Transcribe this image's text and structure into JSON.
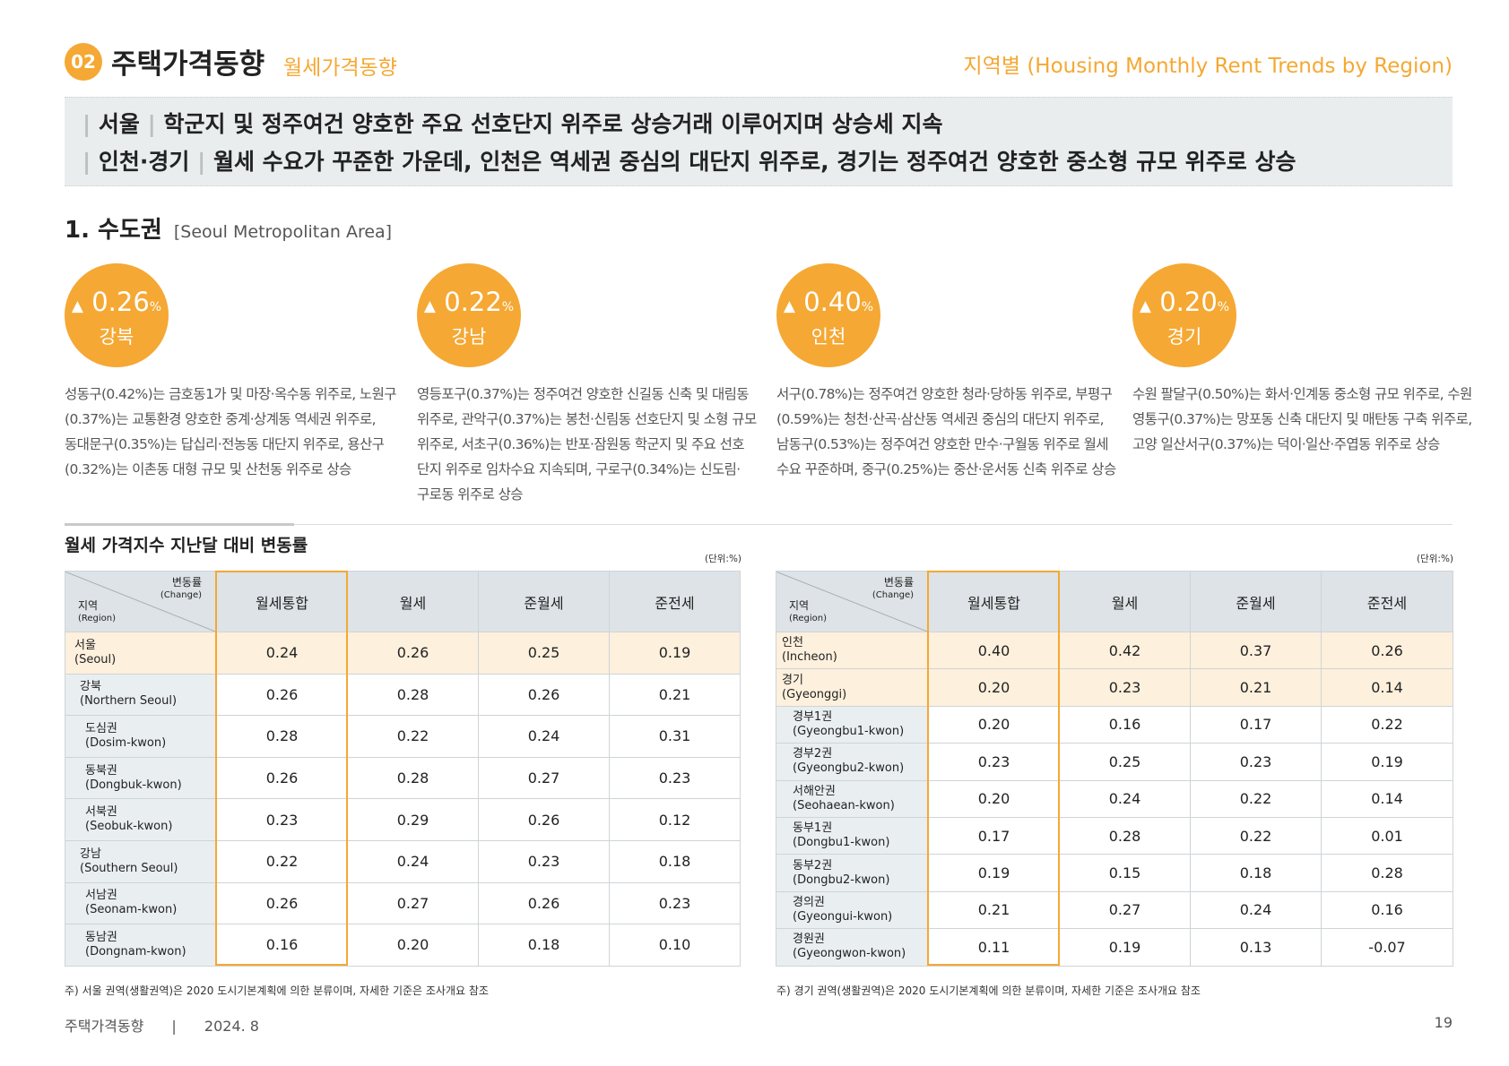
{
  "header": {
    "section_number": "02",
    "title": "주택가격동향",
    "subtitle": "월세가격동향",
    "right_title": "지역별 (Housing Monthly Rent Trends by Region)"
  },
  "summary": {
    "line1_region": "서울",
    "line1_text": "학군지 및 정주여건 양호한 주요 선호단지 위주로 상승거래 이루어지며 상승세 지속",
    "line2_region": "인천·경기",
    "line2_text": "월세 수요가 꾸준한 가운데, 인천은 역세권 중심의 대단지 위주로, 경기는 정주여건 양호한 중소형 규모 위주로 상승",
    "bar": "|"
  },
  "area": {
    "title": "1. 수도권",
    "title_en": "[Seoul Metropolitan Area]"
  },
  "highlights": [
    {
      "arrow": "▲",
      "value": "0.26",
      "unit": "%",
      "name": "강북",
      "desc": [
        "성동구(0.42%)는 금호동1가 및 마장·옥수동 위주로, 노원구",
        "(0.37%)는 교통환경 양호한 중계·상계동 역세권 위주로,",
        "동대문구(0.35%)는 답십리·전농동 대단지 위주로, 용산구",
        "(0.32%)는 이촌동 대형 규모 및 산천동 위주로 상승"
      ]
    },
    {
      "arrow": "▲",
      "value": "0.22",
      "unit": "%",
      "name": "강남",
      "desc": [
        "영등포구(0.37%)는 정주여건 양호한 신길동 신축 및 대림동",
        "위주로, 관악구(0.37%)는 봉천·신림동 선호단지 및 소형 규모",
        "위주로, 서초구(0.36%)는 반포·잠원동 학군지 및 주요 선호",
        "단지 위주로 임차수요 지속되며, 구로구(0.34%)는 신도림·",
        "구로동 위주로 상승"
      ]
    },
    {
      "arrow": "▲",
      "value": "0.40",
      "unit": "%",
      "name": "인천",
      "desc": [
        "서구(0.78%)는 정주여건 양호한 청라·당하동 위주로, 부평구",
        "(0.59%)는 청천·산곡·삼산동 역세권 중심의 대단지 위주로,",
        "남동구(0.53%)는 정주여건 양호한 만수·구월동 위주로 월세",
        "수요 꾸준하며, 중구(0.25%)는 중산·운서동 신축 위주로 상승"
      ]
    },
    {
      "arrow": "▲",
      "value": "0.20",
      "unit": "%",
      "name": "경기",
      "desc": [
        "수원 팔달구(0.50%)는 화서·인계동 중소형 규모 위주로, 수원",
        "영통구(0.37%)는 망포동 신축 대단지 및 매탄동 구축 위주로,",
        "고양 일산서구(0.37%)는 덕이·일산·주엽동 위주로 상승"
      ]
    }
  ],
  "table_section": {
    "title": "월세 가격지수 지난달 대비 변동률",
    "unit": "(단위:%)",
    "diag_top_ko": "변동률",
    "diag_top_en": "(Change)",
    "diag_bot_ko": "지역",
    "diag_bot_en": "(Region)",
    "columns": [
      "월세통합",
      "월세",
      "준월세",
      "준전세"
    ]
  },
  "left_table": {
    "rows": [
      {
        "ko": "서울",
        "en": "(Seoul)",
        "values": [
          "0.24",
          "0.26",
          "0.25",
          "0.19"
        ]
      },
      {
        "ko": "강북",
        "en": "(Northern Seoul)",
        "values": [
          "0.26",
          "0.28",
          "0.26",
          "0.21"
        ]
      },
      {
        "ko": "도심권",
        "en": "(Dosim-kwon)",
        "values": [
          "0.28",
          "0.22",
          "0.24",
          "0.31"
        ]
      },
      {
        "ko": "동북권",
        "en": "(Dongbuk-kwon)",
        "values": [
          "0.26",
          "0.28",
          "0.27",
          "0.23"
        ]
      },
      {
        "ko": "서북권",
        "en": "(Seobuk-kwon)",
        "values": [
          "0.23",
          "0.29",
          "0.26",
          "0.12"
        ]
      },
      {
        "ko": "강남",
        "en": "(Southern Seoul)",
        "values": [
          "0.22",
          "0.24",
          "0.23",
          "0.18"
        ]
      },
      {
        "ko": "서남권",
        "en": "(Seonam-kwon)",
        "values": [
          "0.26",
          "0.27",
          "0.26",
          "0.23"
        ]
      },
      {
        "ko": "동남권",
        "en": "(Dongnam-kwon)",
        "values": [
          "0.16",
          "0.20",
          "0.18",
          "0.10"
        ]
      }
    ],
    "note": "주) 서울 권역(생활권역)은 2020 도시기본계획에 의한 분류이며, 자세한 기준은 조사개요 참조"
  },
  "right_table": {
    "rows": [
      {
        "ko": "인천",
        "en": "(Incheon)",
        "values": [
          "0.40",
          "0.42",
          "0.37",
          "0.26"
        ]
      },
      {
        "ko": "경기",
        "en": "(Gyeonggi)",
        "values": [
          "0.20",
          "0.23",
          "0.21",
          "0.14"
        ]
      },
      {
        "ko": "경부1권",
        "en": "(Gyeongbu1-kwon)",
        "values": [
          "0.20",
          "0.16",
          "0.17",
          "0.22"
        ]
      },
      {
        "ko": "경부2권",
        "en": "(Gyeongbu2-kwon)",
        "values": [
          "0.23",
          "0.25",
          "0.23",
          "0.19"
        ]
      },
      {
        "ko": "서해안권",
        "en": "(Seohaean-kwon)",
        "values": [
          "0.20",
          "0.24",
          "0.22",
          "0.14"
        ]
      },
      {
        "ko": "동부1권",
        "en": "(Dongbu1-kwon)",
        "values": [
          "0.17",
          "0.28",
          "0.22",
          "0.01"
        ]
      },
      {
        "ko": "동부2권",
        "en": "(Dongbu2-kwon)",
        "values": [
          "0.19",
          "0.15",
          "0.18",
          "0.28"
        ]
      },
      {
        "ko": "경의권",
        "en": "(Gyeongui-kwon)",
        "values": [
          "0.21",
          "0.27",
          "0.24",
          "0.16"
        ]
      },
      {
        "ko": "경원권",
        "en": "(Gyeongwon-kwon)",
        "values": [
          "0.11",
          "0.19",
          "0.13",
          "-0.07"
        ]
      }
    ],
    "note": "주) 경기 권역(생활권역)은 2020 도시기본계획에 의한 분류이며, 자세한 기준은 조사개요 참조"
  },
  "footer": {
    "title": "주택가격동향",
    "separator": "|",
    "date": "2024. 8",
    "page": "19"
  },
  "colors": {
    "accent": "#f5a833",
    "highlight_row": "#fdf0dd",
    "header_bg": "#dde3e6"
  }
}
